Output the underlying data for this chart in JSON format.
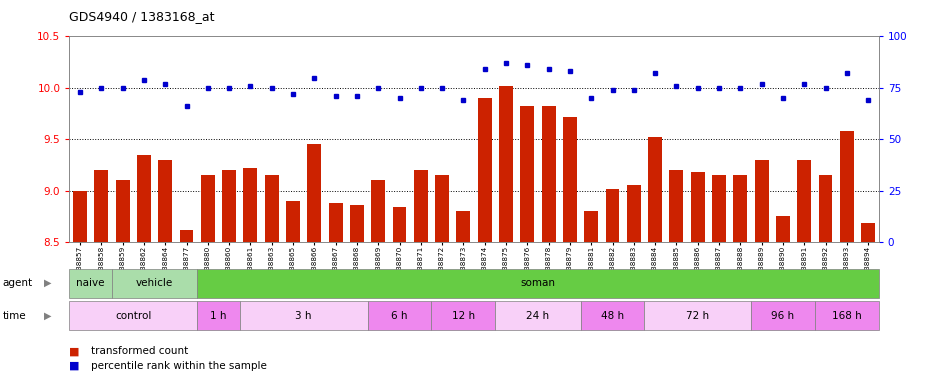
{
  "title": "GDS4940 / 1383168_at",
  "samples": [
    "GSM338857",
    "GSM338858",
    "GSM338859",
    "GSM338862",
    "GSM338864",
    "GSM338877",
    "GSM338880",
    "GSM338860",
    "GSM338861",
    "GSM338863",
    "GSM338865",
    "GSM338866",
    "GSM338867",
    "GSM338868",
    "GSM338869",
    "GSM338870",
    "GSM338871",
    "GSM338872",
    "GSM338873",
    "GSM338874",
    "GSM338875",
    "GSM338876",
    "GSM338878",
    "GSM338879",
    "GSM338881",
    "GSM338882",
    "GSM338883",
    "GSM338884",
    "GSM338885",
    "GSM338886",
    "GSM338887",
    "GSM338888",
    "GSM338889",
    "GSM338890",
    "GSM338891",
    "GSM338892",
    "GSM338893",
    "GSM338894"
  ],
  "bar_values": [
    9.0,
    9.2,
    9.1,
    9.35,
    9.3,
    8.62,
    9.15,
    9.2,
    9.22,
    9.15,
    8.9,
    9.45,
    8.88,
    8.86,
    9.1,
    8.84,
    9.2,
    9.15,
    8.8,
    9.9,
    10.02,
    9.82,
    9.82,
    9.72,
    8.8,
    9.02,
    9.05,
    9.52,
    9.2,
    9.18,
    9.15,
    9.15,
    9.3,
    8.75,
    9.3,
    9.15,
    9.58,
    8.68
  ],
  "blue_values": [
    73,
    75,
    75,
    79,
    77,
    66,
    75,
    75,
    76,
    75,
    72,
    80,
    71,
    71,
    75,
    70,
    75,
    75,
    69,
    84,
    87,
    86,
    84,
    83,
    70,
    74,
    74,
    82,
    76,
    75,
    75,
    75,
    77,
    70,
    77,
    75,
    82,
    69
  ],
  "ylim_left": [
    8.5,
    10.5
  ],
  "ylim_right": [
    0,
    100
  ],
  "yticks_left": [
    8.5,
    9.0,
    9.5,
    10.0,
    10.5
  ],
  "yticks_right": [
    0,
    25,
    50,
    75,
    100
  ],
  "bar_color": "#cc2200",
  "dot_color": "#0000cc",
  "grid_vals": [
    9.0,
    9.5,
    10.0
  ],
  "agent_regions": [
    {
      "start": 0,
      "end": 2,
      "color": "#aaddaa",
      "label": "naive"
    },
    {
      "start": 2,
      "end": 6,
      "color": "#aaddaa",
      "label": "vehicle"
    },
    {
      "start": 6,
      "end": 38,
      "color": "#66cc44",
      "label": "soman"
    }
  ],
  "time_regions": [
    {
      "start": 0,
      "end": 6,
      "color": "#f8d0f8",
      "label": "control"
    },
    {
      "start": 6,
      "end": 8,
      "color": "#ee88ee",
      "label": "1 h"
    },
    {
      "start": 8,
      "end": 14,
      "color": "#f8d0f8",
      "label": "3 h"
    },
    {
      "start": 14,
      "end": 17,
      "color": "#ee88ee",
      "label": "6 h"
    },
    {
      "start": 17,
      "end": 20,
      "color": "#ee88ee",
      "label": "12 h"
    },
    {
      "start": 20,
      "end": 24,
      "color": "#f8d0f8",
      "label": "24 h"
    },
    {
      "start": 24,
      "end": 27,
      "color": "#ee88ee",
      "label": "48 h"
    },
    {
      "start": 27,
      "end": 32,
      "color": "#f8d0f8",
      "label": "72 h"
    },
    {
      "start": 32,
      "end": 35,
      "color": "#ee88ee",
      "label": "96 h"
    },
    {
      "start": 35,
      "end": 38,
      "color": "#ee88ee",
      "label": "168 h"
    }
  ]
}
